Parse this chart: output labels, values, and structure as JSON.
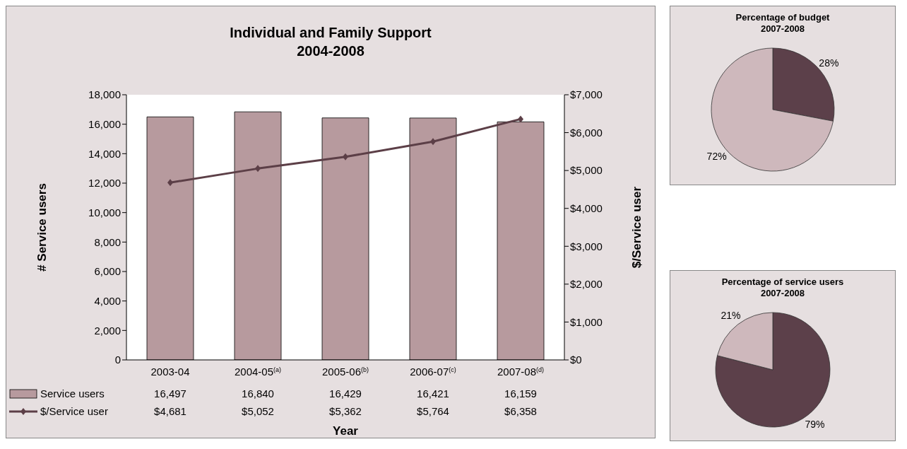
{
  "chart_data": [
    {
      "type": "bar",
      "title": "Individual and Family Support",
      "subtitle": "2004-2008",
      "xlabel": "Year",
      "ylabel": "# Service users",
      "y2label": "$/Service user",
      "categories": [
        "2003-04",
        "2004-05$^{(a)}$",
        "2005-06$^{(b)}$",
        "2006-07$^{(c)}$",
        "2007-08$^{(d)}$"
      ],
      "series": [
        {
          "name": "Service users",
          "color": "#b79a9e",
          "values": [
            16497,
            16840,
            16429,
            16421,
            16159
          ],
          "value_labels": [
            "16,497",
            "16,840",
            "16,429",
            "16,421",
            "16,159"
          ]
        },
        {
          "name": "$/Service user",
          "type": "line",
          "axis": "y2",
          "color": "#5c3f47",
          "marker": "diamond",
          "values": [
            4681,
            5052,
            5362,
            5764,
            6358
          ],
          "value_labels": [
            "$4,681",
            "$5,052",
            "$5,362",
            "$5,764",
            "$6,358"
          ]
        }
      ],
      "ylim": [
        0,
        18000
      ],
      "yticks": [
        0,
        {
          "value": 2000,
          "label": "2,000"
        },
        {
          "value": 4000,
          "label": "4,000"
        },
        {
          "value": 6000,
          "label": "6,000"
        },
        {
          "value": 8000,
          "label": "8,000"
        },
        {
          "value": 10000,
          "label": "10,000"
        },
        {
          "value": 12000,
          "label": "12,000"
        },
        {
          "value": 14000,
          "label": "14,000"
        },
        {
          "value": 16000,
          "label": "16,000"
        },
        {
          "value": 18000,
          "label": "18,000"
        }
      ],
      "y2lim": [
        0,
        7000
      ],
      "y2ticks": [
        {
          "value": 0,
          "label": "$0"
        },
        {
          "value": 1000,
          "label": "$1,000"
        },
        {
          "value": 2000,
          "label": "$2,000"
        },
        {
          "value": 3000,
          "label": "$3,000"
        },
        {
          "value": 4000,
          "label": "$4,000"
        },
        {
          "value": 5000,
          "label": "$5,000"
        },
        {
          "value": 6000,
          "label": "$6,000"
        },
        {
          "value": 7000,
          "label": "$7,000"
        }
      ],
      "legend": "bottom left",
      "grid": false
    },
    {
      "type": "pie",
      "title": "Percentage of budget",
      "subtitle": "2007-2008",
      "categories": [
        null,
        null
      ],
      "values": [
        28,
        72
      ],
      "colors": [
        "#5c404a",
        "#ceb8bc"
      ],
      "value_labels": [
        "28%",
        "72%"
      ]
    },
    {
      "type": "pie",
      "title": "Percentage of service users",
      "subtitle": "2007-2008",
      "categories": [
        null,
        null
      ],
      "values": [
        79,
        21
      ],
      "colors": [
        "#5c404a",
        "#ceb8bc"
      ],
      "value_labels": [
        "79%",
        "21%"
      ]
    }
  ]
}
